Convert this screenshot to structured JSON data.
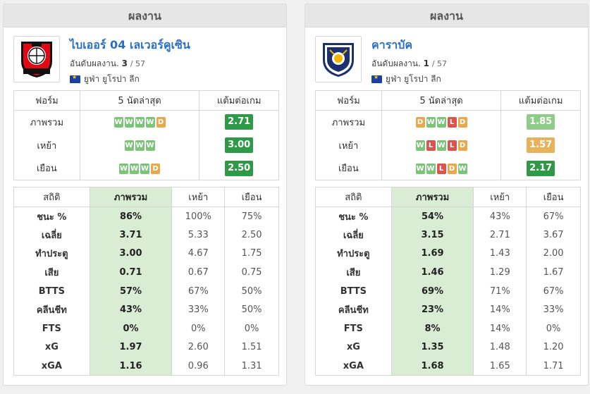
{
  "colors": {
    "win": "#7dc47b",
    "draw": "#e8a84c",
    "loss": "#d9534f",
    "ppg_high": "#2e9a47",
    "ppg_mid": "#8fcc8a",
    "ppg_low": "#e8a84c",
    "overall_bg": "#d9ecd4",
    "team_name": "#2a6fc5"
  },
  "panels": [
    {
      "header": "ผลงาน",
      "team_name": "ไบเออร์ 04 เลเวอร์คูเซิน",
      "rank_label": "อันดับผลงาน.",
      "rank": "3",
      "rank_total": "/ 57",
      "league": "ยูฟ่า ยูโรปา ลีก",
      "logo_icon": "bayer-leverkusen-crest-icon",
      "form_headers": [
        "ฟอร์ม",
        "5 นัดล่าสุด",
        "แต้มต่อเกม"
      ],
      "form_rows": [
        {
          "label": "ภาพรวม",
          "results": [
            "W",
            "W",
            "W",
            "W",
            "D"
          ],
          "ppg": "2.71",
          "ppg_color": "#2e9a47"
        },
        {
          "label": "เหย้า",
          "results": [
            "W",
            "W",
            "W"
          ],
          "ppg": "3.00",
          "ppg_color": "#2e9a47"
        },
        {
          "label": "เยือน",
          "results": [
            "W",
            "W",
            "W",
            "D"
          ],
          "ppg": "2.50",
          "ppg_color": "#2e9a47"
        }
      ],
      "stats_headers": [
        "สถิติ",
        "ภาพรวม",
        "เหย้า",
        "เยือน"
      ],
      "stats_rows": [
        {
          "label": "ชนะ %",
          "overall": "86%",
          "home": "100%",
          "away": "75%"
        },
        {
          "label": "เฉลี่ย",
          "overall": "3.71",
          "home": "5.33",
          "away": "2.50"
        },
        {
          "label": "ทำประตู",
          "overall": "3.00",
          "home": "4.67",
          "away": "1.75"
        },
        {
          "label": "เสีย",
          "overall": "0.71",
          "home": "0.67",
          "away": "0.75"
        },
        {
          "label": "BTTS",
          "overall": "57%",
          "home": "67%",
          "away": "50%"
        },
        {
          "label": "คลีนชีท",
          "overall": "43%",
          "home": "33%",
          "away": "50%"
        },
        {
          "label": "FTS",
          "overall": "0%",
          "home": "0%",
          "away": "0%"
        },
        {
          "label": "xG",
          "overall": "1.97",
          "home": "2.60",
          "away": "1.51"
        },
        {
          "label": "xGA",
          "overall": "1.16",
          "home": "0.96",
          "away": "1.31"
        }
      ]
    },
    {
      "header": "ผลงาน",
      "team_name": "คาราบัค",
      "rank_label": "อันดับผลงาน.",
      "rank": "1",
      "rank_total": "/ 57",
      "league": "ยูฟ่า ยูโรปา ลีก",
      "logo_icon": "qarabag-crest-icon",
      "form_headers": [
        "ฟอร์ม",
        "5 นัดล่าสุด",
        "แต้มต่อเกม"
      ],
      "form_rows": [
        {
          "label": "ภาพรวม",
          "results": [
            "D",
            "W",
            "W",
            "L",
            "D"
          ],
          "ppg": "1.85",
          "ppg_color": "#8fcc8a"
        },
        {
          "label": "เหย้า",
          "results": [
            "W",
            "L",
            "W",
            "L",
            "D"
          ],
          "ppg": "1.57",
          "ppg_color": "#e8b25a"
        },
        {
          "label": "เยือน",
          "results": [
            "W",
            "W",
            "L",
            "D",
            "W"
          ],
          "ppg": "2.17",
          "ppg_color": "#2e9a47"
        }
      ],
      "stats_headers": [
        "สถิติ",
        "ภาพรวม",
        "เหย้า",
        "เยือน"
      ],
      "stats_rows": [
        {
          "label": "ชนะ %",
          "overall": "54%",
          "home": "43%",
          "away": "67%"
        },
        {
          "label": "เฉลี่ย",
          "overall": "3.15",
          "home": "2.71",
          "away": "3.67"
        },
        {
          "label": "ทำประตู",
          "overall": "1.69",
          "home": "1.43",
          "away": "2.00"
        },
        {
          "label": "เสีย",
          "overall": "1.46",
          "home": "1.29",
          "away": "1.67"
        },
        {
          "label": "BTTS",
          "overall": "69%",
          "home": "71%",
          "away": "67%"
        },
        {
          "label": "คลีนชีท",
          "overall": "23%",
          "home": "14%",
          "away": "33%"
        },
        {
          "label": "FTS",
          "overall": "8%",
          "home": "14%",
          "away": "0%"
        },
        {
          "label": "xG",
          "overall": "1.35",
          "home": "1.48",
          "away": "1.20"
        },
        {
          "label": "xGA",
          "overall": "1.68",
          "home": "1.65",
          "away": "1.71"
        }
      ]
    }
  ]
}
